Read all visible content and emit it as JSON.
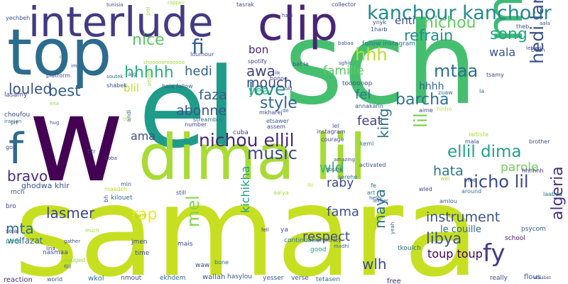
{
  "word_cloud": {
    "words": [
      {
        "text": "samara",
        "color": "#c6e021"
      },
      {
        "text": "w",
        "color": "#440154"
      },
      {
        "text": "sch",
        "color": "#45bf6f"
      },
      {
        "text": "el",
        "color": "#1e9c89"
      },
      {
        "text": "top",
        "color": "#2c6c8e"
      },
      {
        "text": "dima lil",
        "color": "#a8db34"
      },
      {
        "text": "interlude",
        "color": "#443a83"
      },
      {
        "text": "clip",
        "color": "#482576"
      },
      {
        "text": "men",
        "color": "#3bbb75"
      },
      {
        "text": "f",
        "color": "#2f6b8e"
      },
      {
        "text": "kanchour kanchour",
        "color": "#238a8d"
      },
      {
        "text": "hhhhh",
        "color": "#2cb17e"
      },
      {
        "text": "fi",
        "color": "#33638d"
      },
      {
        "text": "nice",
        "color": "#5ac864"
      },
      {
        "text": "nichou ellil",
        "color": "#482878"
      },
      {
        "text": "ellil dima",
        "color": "#20a386"
      },
      {
        "text": "music",
        "color": "#3e4a89"
      },
      {
        "text": "love",
        "color": "#21918c"
      },
      {
        "text": "hedi lartiste",
        "color": "#3b528b"
      },
      {
        "text": "nicho lil",
        "color": "#3e4989"
      },
      {
        "text": "mtaa",
        "color": "#2e6e8e"
      },
      {
        "text": "song",
        "color": "#22a884"
      },
      {
        "text": "nichou",
        "color": "#63cb5f"
      },
      {
        "text": "refrain",
        "color": "#228c8d"
      },
      {
        "text": "wala",
        "color": "#3a538b"
      },
      {
        "text": "enti",
        "color": "#3b518b"
      },
      {
        "text": "hhh",
        "color": "#bade28"
      },
      {
        "text": "awa",
        "color": "#404588"
      },
      {
        "text": "bon",
        "color": "#481f70"
      },
      {
        "text": "famille",
        "color": "#5ec962"
      },
      {
        "text": "style",
        "color": "#31688e"
      },
      {
        "text": "barcha",
        "color": "#2c728e"
      },
      {
        "text": "feat",
        "color": "#424186"
      },
      {
        "text": "fel",
        "color": "#2a788e"
      },
      {
        "text": "hhhh",
        "color": "#31688e"
      },
      {
        "text": "best",
        "color": "#34608d"
      },
      {
        "text": "louled",
        "color": "#3b528b"
      },
      {
        "text": "blil",
        "color": "#c2df23"
      },
      {
        "text": "hedi",
        "color": "#34618d"
      },
      {
        "text": "faza",
        "color": "#365c8d"
      },
      {
        "text": "mouch",
        "color": "#3e4989"
      },
      {
        "text": "yea",
        "color": "#29af7f"
      },
      {
        "text": "abonne",
        "color": "#38588c"
      },
      {
        "text": "ama",
        "color": "#3e4c8a"
      },
      {
        "text": "king",
        "color": "#2b748e"
      },
      {
        "text": "lil",
        "color": "#7ad151"
      },
      {
        "text": "wld",
        "color": "#32b67a"
      },
      {
        "text": "hata",
        "color": "#2a788e"
      },
      {
        "text": "parole",
        "color": "#70cf57"
      },
      {
        "text": "raby",
        "color": "#414487"
      },
      {
        "text": "bravo",
        "color": "#472d7b"
      },
      {
        "text": "lasmer",
        "color": "#3f4788"
      },
      {
        "text": "rap",
        "color": "#f1e51d"
      },
      {
        "text": "fama",
        "color": "#3b528b"
      },
      {
        "text": "instrument",
        "color": "#3b528b"
      },
      {
        "text": "respect",
        "color": "#3e4a89"
      },
      {
        "text": "fy",
        "color": "#443983"
      },
      {
        "text": "libya",
        "color": "#3b518b"
      },
      {
        "text": "maya",
        "color": "#2a768e"
      },
      {
        "text": "kichikha",
        "color": "#1fa088"
      },
      {
        "text": "mel",
        "color": "#84d44b"
      },
      {
        "text": "mta",
        "color": "#2e6d8e"
      },
      {
        "text": "algeria",
        "color": "#46307e"
      },
      {
        "text": "wlh",
        "color": "#3c4f8a"
      },
      {
        "text": "toup toup",
        "color": "#440154"
      },
      {
        "text": "le couille",
        "color": "#31688e"
      },
      {
        "text": "ghodwa khir",
        "color": "#39558c"
      },
      {
        "text": "welfazat",
        "color": "#31688e"
      },
      {
        "text": "im",
        "color": "#39568c"
      },
      {
        "text": "yechbeh",
        "color": "#3a548c"
      },
      {
        "text": "platform",
        "color": "#3c508b"
      },
      {
        "text": "one",
        "color": "#2b748e"
      },
      {
        "text": "lasamy",
        "color": "#404588"
      },
      {
        "text": "soutek",
        "color": "#2d718e"
      },
      {
        "text": "shabek",
        "color": "#3b528b"
      },
      {
        "text": "alg",
        "color": "#2c728e"
      },
      {
        "text": "haja",
        "color": "#39558c"
      },
      {
        "text": "follow",
        "color": "#34608d"
      },
      {
        "text": "choufou",
        "color": "#3c508b"
      },
      {
        "text": "iranian",
        "color": "#2d708e"
      },
      {
        "text": "prt",
        "color": "#3e4a89"
      },
      {
        "text": "god",
        "color": "#3e4989"
      },
      {
        "text": "mch",
        "color": "#38588c"
      },
      {
        "text": "bro",
        "color": "#3e4a89"
      },
      {
        "text": "sela",
        "color": "#3b528b"
      },
      {
        "text": "piece",
        "color": "#1f958b"
      },
      {
        "text": "reaction",
        "color": "#472c7a"
      },
      {
        "text": "world",
        "color": "#3b528b"
      },
      {
        "text": "wkol",
        "color": "#2b748e"
      },
      {
        "text": "nmout",
        "color": "#414487"
      },
      {
        "text": "ekhdem",
        "color": "#31688e"
      },
      {
        "text": "wallah",
        "color": "#3a538b"
      },
      {
        "text": "hasylou",
        "color": "#38588c"
      },
      {
        "text": "yesser",
        "color": "#38588c"
      },
      {
        "text": "verse",
        "color": "#3b528b"
      },
      {
        "text": "tetasen",
        "color": "#2d708e"
      },
      {
        "text": "free",
        "color": "#482677"
      },
      {
        "text": "really",
        "color": "#3e4a89"
      },
      {
        "text": "flous",
        "color": "#3b528b"
      },
      {
        "text": "elisabet",
        "color": "#3e4a89"
      },
      {
        "text": "nasmaa",
        "color": "#3e4c8a"
      },
      {
        "text": "lina",
        "color": "#443983"
      },
      {
        "text": "filil",
        "color": "#31688e"
      },
      {
        "text": "nouged",
        "color": "#8fd744"
      },
      {
        "text": "time",
        "color": "#3b518b"
      },
      {
        "text": "jmen",
        "color": "#3e4c8a"
      },
      {
        "text": "mais",
        "color": "#3e4989"
      },
      {
        "text": "waw",
        "color": "#3e4989"
      },
      {
        "text": "bone",
        "color": "#2d708e"
      },
      {
        "text": "good",
        "color": "#21a585"
      },
      {
        "text": "thirsty",
        "color": "#39568c"
      },
      {
        "text": "madhi",
        "color": "#2d708e"
      },
      {
        "text": "tkoulch",
        "color": "#2c728e"
      },
      {
        "text": "yeah",
        "color": "#38588c"
      },
      {
        "text": "school",
        "color": "#481b6d"
      },
      {
        "text": "psycom",
        "color": "#34608d"
      },
      {
        "text": "laabed",
        "color": "#2e6f8e"
      },
      {
        "text": "gather",
        "color": "#3b528b"
      },
      {
        "text": "much",
        "color": "#a0da39"
      },
      {
        "text": "copie",
        "color": "#b5de2b"
      },
      {
        "text": "continuation",
        "color": "#2c728e"
      },
      {
        "text": "ya",
        "color": "#3b528b"
      },
      {
        "text": "fell",
        "color": "#453581"
      },
      {
        "text": "amlou",
        "color": "#34608d"
      },
      {
        "text": "lekher",
        "color": "#38588c"
      },
      {
        "text": "hethi",
        "color": "#35608d"
      },
      {
        "text": "art",
        "color": "#2a788e"
      },
      {
        "text": "around",
        "color": "#2c728e"
      },
      {
        "text": "hhhhhh",
        "color": "#472f7d"
      },
      {
        "text": "wled",
        "color": "#3e4989"
      },
      {
        "text": "wel",
        "color": "#b5de2b"
      },
      {
        "text": "llil",
        "color": "#bddf26"
      },
      {
        "text": "aalya",
        "color": "#a5db36"
      },
      {
        "text": "still",
        "color": "#3e4989"
      },
      {
        "text": "maadch",
        "color": "#c0df25"
      },
      {
        "text": "kilouet",
        "color": "#2f6c8e"
      },
      {
        "text": "bh",
        "color": "#3b528b"
      },
      {
        "text": "min",
        "color": "#39568c"
      },
      {
        "text": "titr",
        "color": "#3e4a89"
      },
      {
        "text": "coba",
        "color": "#3e4989"
      },
      {
        "text": "andi",
        "color": "#34608d"
      },
      {
        "text": "streambuy",
        "color": "#2e6d8e"
      },
      {
        "text": "cuba",
        "color": "#414487"
      },
      {
        "text": "etsawer",
        "color": "#34608d"
      },
      {
        "text": "assem",
        "color": "#3e4989"
      },
      {
        "text": "number",
        "color": "#404588"
      },
      {
        "text": "mkharej",
        "color": "#3e4a89"
      },
      {
        "text": "de",
        "color": "#2f6c8e"
      },
      {
        "text": "annakarin",
        "color": "#39568c"
      },
      {
        "text": "aime",
        "color": "#3e4989"
      },
      {
        "text": "nisho",
        "color": "#bddf26"
      },
      {
        "text": "la",
        "color": "#2e6f8e"
      },
      {
        "text": "tsamy",
        "color": "#3e4989"
      },
      {
        "text": "bech",
        "color": "#3a538b"
      },
      {
        "text": "lebled",
        "color": "#3e4c8a"
      },
      {
        "text": "aala",
        "color": "#3a538b"
      },
      {
        "text": "zuaw",
        "color": "#2d708e"
      },
      {
        "text": "lartiste",
        "color": "#a0da39"
      },
      {
        "text": "mala",
        "color": "#3e4a89"
      },
      {
        "text": "brother",
        "color": "#3b528b"
      },
      {
        "text": "vibe",
        "color": "#39568c"
      },
      {
        "text": "fe",
        "color": "#2e6d8e"
      },
      {
        "text": "serehe",
        "color": "#2c728e"
      },
      {
        "text": "rouhk",
        "color": "#3e4989"
      },
      {
        "text": "activated",
        "color": "#3b528b"
      },
      {
        "text": "keml",
        "color": "#2e6f8e"
      },
      {
        "text": "courage",
        "color": "#3e4989"
      },
      {
        "text": "amazing",
        "color": "#3e4c8a"
      },
      {
        "text": "instagram",
        "color": "#3e4989"
      },
      {
        "text": "lel",
        "color": "#3b528b"
      },
      {
        "text": "chy",
        "color": "#9fda3a"
      },
      {
        "text": "ena",
        "color": "#8fd744"
      },
      {
        "text": "hug",
        "color": "#3b528b"
      },
      {
        "text": "people",
        "color": "#9bd93c"
      },
      {
        "text": "shoooooroooooo",
        "color": "#9bd93c"
      },
      {
        "text": "toooooop",
        "color": "#3b528b"
      },
      {
        "text": "old",
        "color": "#3a538b"
      },
      {
        "text": "sghir",
        "color": "#3b528b"
      },
      {
        "text": "bonne",
        "color": "#3e4989"
      },
      {
        "text": "lik",
        "color": "#3e4989"
      },
      {
        "text": "loumour",
        "color": "#3e4989"
      },
      {
        "text": "bat le",
        "color": "#3b528b"
      },
      {
        "text": "spotify",
        "color": "#3e4989"
      },
      {
        "text": "follow instagram",
        "color": "#2c728e"
      },
      {
        "text": "babaa",
        "color": "#3b528b"
      },
      {
        "text": "ynyk",
        "color": "#3e4989"
      },
      {
        "text": "1harb",
        "color": "#3a538b"
      },
      {
        "text": "theb",
        "color": "#3b528b"
      },
      {
        "text": "hani",
        "color": "#3e4989"
      },
      {
        "text": "collector",
        "color": "#414487"
      },
      {
        "text": "tasrak",
        "color": "#3e4989"
      },
      {
        "text": "rapper",
        "color": "#9fda3a"
      },
      {
        "text": "tunisia",
        "color": "#3e4989"
      },
      {
        "text": "pnl",
        "color": "#9bd93c"
      }
    ]
  }
}
